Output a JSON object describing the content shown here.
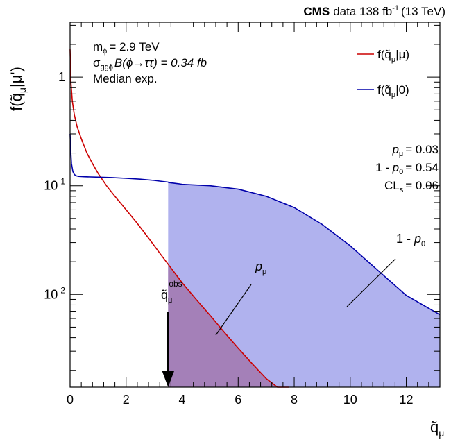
{
  "header": {
    "experiment": "CMS",
    "lumi_prefix": "data 138 fb",
    "lumi_exp": "-1",
    "energy": "(13 TeV)"
  },
  "info": {
    "mass_label": "m",
    "mass_sub": "ϕ",
    "mass_value": "= 2.9 TeV",
    "xs_label": "σ",
    "xs_sub": "ggϕ",
    "xs_text": "B(ϕ→ττ) = 0.34 fb",
    "median": "Median exp."
  },
  "legend": [
    {
      "label_pre": "f(q̃",
      "label_sub": "μ",
      "label_post": "|μ)",
      "color": "#cc0000"
    },
    {
      "label_pre": "f(q̃",
      "label_sub": "μ",
      "label_post": "|0)",
      "color": "#0000aa"
    }
  ],
  "results": {
    "p_mu_label": "p",
    "p_mu_sub": "μ",
    "p_mu_value": "= 0.03",
    "one_minus_p0_pre": "1 - ",
    "one_minus_p0_label": "p",
    "one_minus_p0_sub": "0",
    "one_minus_p0_value": "= 0.54",
    "cls_label": "CL",
    "cls_sub": "s",
    "cls_value": "= 0.06"
  },
  "annotations": {
    "region_pmu_label": "p",
    "region_pmu_sub": "μ",
    "region_p0_pre": "1 - ",
    "region_p0_label": "p",
    "region_p0_sub": "0",
    "obs_label": "q̃",
    "obs_sub": "μ",
    "obs_sup": "obs"
  },
  "axes": {
    "ylabel_pre": "f(q̃",
    "ylabel_sub": "μ",
    "ylabel_post": "|μ')",
    "xlabel": "q̃",
    "xlabel_sub": "μ"
  },
  "chart_data": {
    "type": "line",
    "xlim": [
      0,
      13.2
    ],
    "ylim": [
      0.0014,
      3.2
    ],
    "yscale": "log",
    "x_ticks": [
      0,
      2,
      4,
      6,
      8,
      10,
      12
    ],
    "y_ticks": [
      {
        "value": 0.01,
        "base": "10",
        "exp": "-2"
      },
      {
        "value": 0.1,
        "base": "10",
        "exp": "-1"
      },
      {
        "value": 1,
        "base": "1",
        "exp": ""
      }
    ],
    "q_obs": 3.5,
    "series": [
      {
        "name": "f(q̃μ|μ)",
        "color": "#cc0000",
        "x": [
          0.0,
          0.03,
          0.08,
          0.15,
          0.25,
          0.4,
          0.6,
          0.8,
          1.0,
          1.3,
          1.6,
          2.0,
          2.4,
          2.8,
          3.2,
          3.6,
          4.0,
          4.5,
          5.0,
          5.5,
          6.0,
          6.5,
          7.0,
          7.4,
          7.8
        ],
        "y": [
          1.8,
          0.9,
          0.6,
          0.45,
          0.35,
          0.27,
          0.2,
          0.16,
          0.13,
          0.1,
          0.08,
          0.06,
          0.045,
          0.033,
          0.024,
          0.0175,
          0.0128,
          0.009,
          0.0064,
          0.0045,
          0.0032,
          0.0023,
          0.00168,
          0.00128,
          0.00095
        ]
      },
      {
        "name": "f(q̃μ|0)",
        "color": "#0000aa",
        "x": [
          0.0,
          0.02,
          0.05,
          0.1,
          0.15,
          0.2,
          0.3,
          0.5,
          1.0,
          1.5,
          2.0,
          2.5,
          3.0,
          3.5,
          3.52,
          3.9,
          4.0,
          5.0,
          6.0,
          7.0,
          8.0,
          9.0,
          10.0,
          11.0,
          12.0,
          13.2
        ],
        "y": [
          0.3,
          0.22,
          0.16,
          0.135,
          0.127,
          0.124,
          0.122,
          0.121,
          0.12,
          0.119,
          0.117,
          0.115,
          0.112,
          0.108,
          0.107,
          0.104,
          0.103,
          0.1,
          0.093,
          0.08,
          0.063,
          0.044,
          0.028,
          0.0165,
          0.0098,
          0.0065
        ]
      }
    ]
  }
}
